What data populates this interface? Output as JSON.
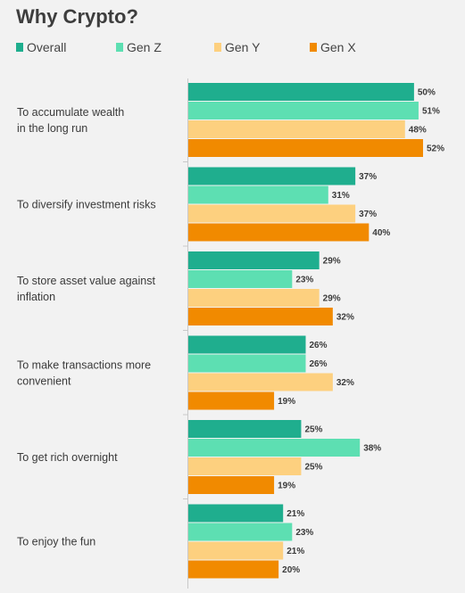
{
  "chart_data": {
    "type": "bar",
    "orientation": "horizontal",
    "title": "Why Crypto?",
    "value_suffix": "%",
    "categories": [
      [
        "To accumulate wealth",
        "in the long run"
      ],
      [
        "To diversify investment risks"
      ],
      [
        "To store asset value against",
        "inflation"
      ],
      [
        "To make transactions more",
        "convenient"
      ],
      [
        "To get rich overnight"
      ],
      [
        "To enjoy the fun"
      ]
    ],
    "series": [
      {
        "name": "Overall",
        "color": "#1fae8e",
        "values": [
          50,
          37,
          29,
          26,
          25,
          21
        ]
      },
      {
        "name": "Gen Z",
        "color": "#5ddfb2",
        "values": [
          51,
          31,
          23,
          26,
          38,
          23
        ]
      },
      {
        "name": "Gen Y",
        "color": "#fdd07f",
        "values": [
          48,
          37,
          29,
          32,
          25,
          21
        ]
      },
      {
        "name": "Gen X",
        "color": "#f18a00",
        "values": [
          52,
          40,
          32,
          19,
          19,
          20
        ]
      }
    ],
    "xlim": [
      0,
      52
    ],
    "legend": "top",
    "grid": false
  }
}
